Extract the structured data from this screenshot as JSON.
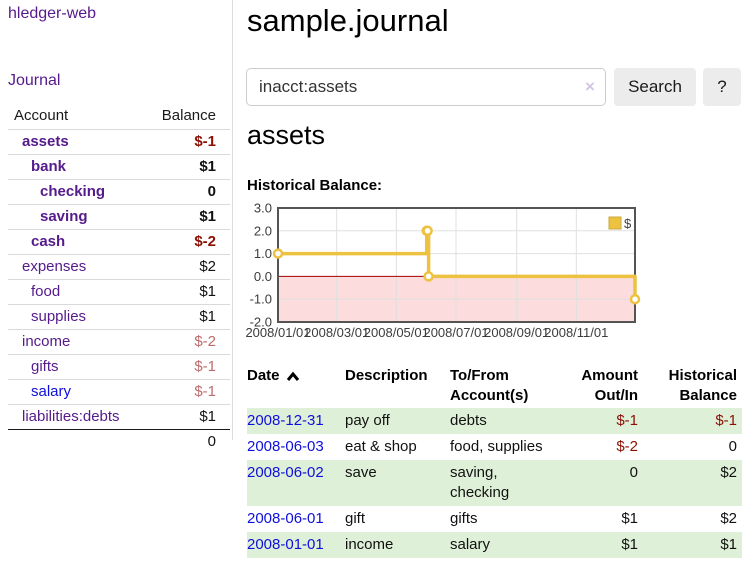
{
  "app": {
    "title": "hledger-web",
    "nav_journal": "Journal"
  },
  "sidebar": {
    "columns": [
      "Account",
      "Balance"
    ],
    "accounts": [
      {
        "name": "assets",
        "depth": 1,
        "bold": true,
        "balance": "$-1",
        "balance_style": "neg-strong",
        "link": "purple"
      },
      {
        "name": "bank",
        "depth": 2,
        "bold": true,
        "balance": "$1",
        "balance_style": "pos",
        "link": "purple"
      },
      {
        "name": "checking",
        "depth": 3,
        "bold": true,
        "balance": "0",
        "balance_style": "pos",
        "link": "purple"
      },
      {
        "name": "saving",
        "depth": 3,
        "bold": true,
        "balance": "$1",
        "balance_style": "pos",
        "link": "purple"
      },
      {
        "name": "cash",
        "depth": 2,
        "bold": true,
        "balance": "$-2",
        "balance_style": "neg-strong",
        "link": "purple"
      },
      {
        "name": "expenses",
        "depth": 1,
        "bold": false,
        "balance": "$2",
        "balance_style": "pos",
        "link": "purple"
      },
      {
        "name": "food",
        "depth": 2,
        "bold": false,
        "balance": "$1",
        "balance_style": "pos",
        "link": "purple"
      },
      {
        "name": "supplies",
        "depth": 2,
        "bold": false,
        "balance": "$1",
        "balance_style": "pos",
        "link": "purple"
      },
      {
        "name": "income",
        "depth": 1,
        "bold": false,
        "balance": "$-2",
        "balance_style": "neg-muted",
        "link": "purple"
      },
      {
        "name": "gifts",
        "depth": 2,
        "bold": false,
        "balance": "$-1",
        "balance_style": "neg-muted",
        "link": "purple"
      },
      {
        "name": "salary",
        "depth": 2,
        "bold": false,
        "balance": "$-1",
        "balance_style": "neg-muted",
        "link": "blue"
      },
      {
        "name": "liabilities:debts",
        "depth": 1,
        "bold": false,
        "balance": "$1",
        "balance_style": "pos",
        "link": "purple"
      }
    ],
    "total": "0"
  },
  "header": {
    "title": "sample.journal"
  },
  "search": {
    "value": "inacct:assets",
    "clear_icon": "×",
    "button_label": "Search",
    "help_label": "?"
  },
  "account_page": {
    "title": "assets",
    "chart_label": "Historical Balance:"
  },
  "chart_data": {
    "type": "line",
    "title": "Historical Balance",
    "step": true,
    "series": [
      {
        "name": "$",
        "color": "#EDC240",
        "points": [
          [
            "2008-01-01",
            1
          ],
          [
            "2008-06-01",
            2
          ],
          [
            "2008-06-02",
            2
          ],
          [
            "2008-06-03",
            0
          ],
          [
            "2008-12-31",
            -1
          ]
        ]
      }
    ],
    "xlim": [
      "2008-01-01",
      "2008-12-31"
    ],
    "ylim": [
      -2,
      3
    ],
    "x_ticks": [
      "2008/01/01",
      "2008/03/01",
      "2008/05/01",
      "2008/07/01",
      "2008/09/01",
      "2008/11/01"
    ],
    "y_ticks": [
      "3.0",
      "2.0",
      "1.0",
      "0.0",
      "-1.0",
      "-2.0"
    ],
    "legend": {
      "label": "$",
      "position": "top-right"
    },
    "grid": true,
    "colors": {
      "border": "#545454",
      "gridline": "#e0e0e0",
      "zero_line": "#a40000",
      "negative_region_fill": "#fcdcdc",
      "tick_label": "#3c3c3c"
    }
  },
  "register": {
    "columns": [
      {
        "label": "Date",
        "sort": "asc"
      },
      {
        "label": "Description"
      },
      {
        "label": "To/From Account(s)"
      },
      {
        "label": "Amount Out/In"
      },
      {
        "label": "Historical Balance"
      }
    ],
    "rows": [
      {
        "date": "2008-12-31",
        "description": "pay off",
        "accounts": "debts",
        "amount": "$-1",
        "amount_negative": true,
        "balance": "$-1",
        "balance_negative": true
      },
      {
        "date": "2008-06-03",
        "description": "eat & shop",
        "accounts": "food, supplies",
        "amount": "$-2",
        "amount_negative": true,
        "balance": "0",
        "balance_negative": false
      },
      {
        "date": "2008-06-02",
        "description": "save",
        "accounts": "saving, checking",
        "amount": "0",
        "amount_negative": false,
        "balance": "$2",
        "balance_negative": false
      },
      {
        "date": "2008-06-01",
        "description": "gift",
        "accounts": "gifts",
        "amount": "$1",
        "amount_negative": false,
        "balance": "$2",
        "balance_negative": false
      },
      {
        "date": "2008-01-01",
        "description": "income",
        "accounts": "salary",
        "amount": "$1",
        "amount_negative": false,
        "balance": "$1",
        "balance_negative": false
      }
    ]
  },
  "colors": {
    "link_purple": "#551A8B",
    "link_blue": "#0f0fdd",
    "negative_strong": "#8b0f04",
    "negative_muted": "#bd6c6c",
    "row_stripe_green": "#dff0d8",
    "button_gray": "#ececec"
  }
}
